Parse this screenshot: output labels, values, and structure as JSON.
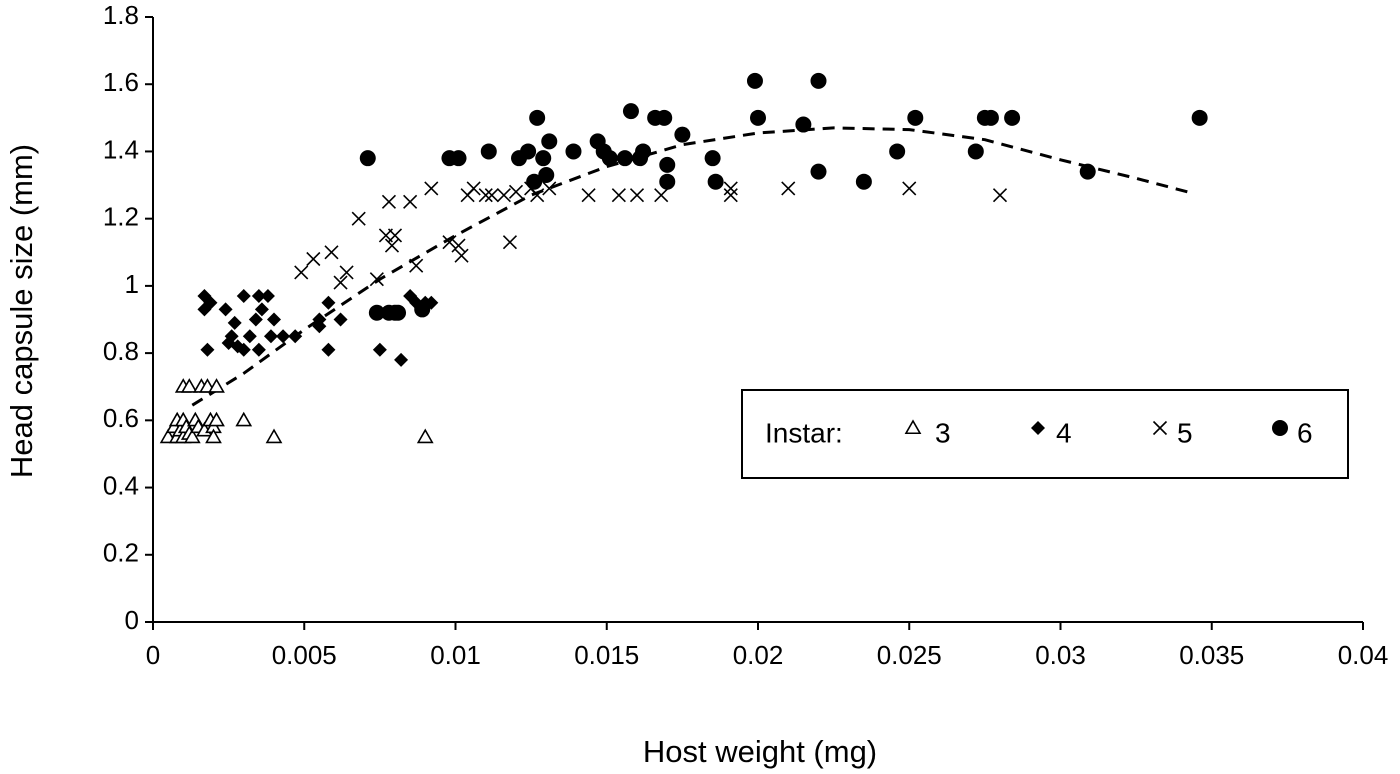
{
  "chart_data": {
    "type": "scatter",
    "xlabel": "Host weight (mg)",
    "ylabel": "Head capsule size (mm)",
    "xlim": [
      0,
      0.04
    ],
    "ylim": [
      0,
      1.8
    ],
    "x_ticks": [
      "0",
      "0.005",
      "0.01",
      "0.015",
      "0.02",
      "0.025",
      "0.03",
      "0.035",
      "0.04"
    ],
    "y_ticks": [
      "0",
      "0.2",
      "0.4",
      "0.6",
      "0.8",
      "1",
      "1.2",
      "1.4",
      "1.6",
      "1.8"
    ],
    "grid": false,
    "legend": {
      "title": "Instar:",
      "placement": "center-right",
      "entries": [
        {
          "label": "3",
          "marker": "triangle-open"
        },
        {
          "label": "4",
          "marker": "diamond-filled"
        },
        {
          "label": "5",
          "marker": "x"
        },
        {
          "label": "6",
          "marker": "circle-filled"
        }
      ]
    },
    "series": [
      {
        "name": "3",
        "marker": "triangle-open",
        "points": [
          [
            0.0005,
            0.55
          ],
          [
            0.0007,
            0.58
          ],
          [
            0.0008,
            0.6
          ],
          [
            0.0008,
            0.55
          ],
          [
            0.0009,
            0.57
          ],
          [
            0.001,
            0.7
          ],
          [
            0.001,
            0.6
          ],
          [
            0.001,
            0.55
          ],
          [
            0.0011,
            0.58
          ],
          [
            0.0012,
            0.7
          ],
          [
            0.0012,
            0.56
          ],
          [
            0.0013,
            0.55
          ],
          [
            0.0014,
            0.6
          ],
          [
            0.0015,
            0.58
          ],
          [
            0.0016,
            0.7
          ],
          [
            0.0017,
            0.57
          ],
          [
            0.0018,
            0.7
          ],
          [
            0.0019,
            0.6
          ],
          [
            0.002,
            0.58
          ],
          [
            0.002,
            0.55
          ],
          [
            0.0021,
            0.7
          ],
          [
            0.0021,
            0.6
          ],
          [
            0.003,
            0.6
          ],
          [
            0.004,
            0.55
          ],
          [
            0.009,
            0.55
          ]
        ]
      },
      {
        "name": "4",
        "marker": "diamond-filled",
        "points": [
          [
            0.0017,
            0.97
          ],
          [
            0.0017,
            0.93
          ],
          [
            0.0018,
            0.81
          ],
          [
            0.0019,
            0.95
          ],
          [
            0.0024,
            0.93
          ],
          [
            0.0025,
            0.83
          ],
          [
            0.0026,
            0.85
          ],
          [
            0.0027,
            0.89
          ],
          [
            0.0028,
            0.82
          ],
          [
            0.003,
            0.97
          ],
          [
            0.003,
            0.81
          ],
          [
            0.0032,
            0.85
          ],
          [
            0.0034,
            0.9
          ],
          [
            0.0035,
            0.81
          ],
          [
            0.0035,
            0.97
          ],
          [
            0.0036,
            0.93
          ],
          [
            0.0038,
            0.97
          ],
          [
            0.0039,
            0.85
          ],
          [
            0.004,
            0.9
          ],
          [
            0.0043,
            0.85
          ],
          [
            0.0047,
            0.85
          ],
          [
            0.0055,
            0.88
          ],
          [
            0.0055,
            0.9
          ],
          [
            0.0058,
            0.95
          ],
          [
            0.0058,
            0.81
          ],
          [
            0.0062,
            0.9
          ],
          [
            0.0075,
            0.81
          ],
          [
            0.0082,
            0.78
          ],
          [
            0.0085,
            0.97
          ],
          [
            0.0087,
            0.95
          ],
          [
            0.009,
            0.95
          ],
          [
            0.0092,
            0.95
          ]
        ]
      },
      {
        "name": "5",
        "marker": "x",
        "points": [
          [
            0.0049,
            1.04
          ],
          [
            0.0053,
            1.08
          ],
          [
            0.0059,
            1.1
          ],
          [
            0.0062,
            1.01
          ],
          [
            0.0064,
            1.04
          ],
          [
            0.0068,
            1.2
          ],
          [
            0.0074,
            1.02
          ],
          [
            0.0077,
            1.15
          ],
          [
            0.0078,
            1.25
          ],
          [
            0.0079,
            1.12
          ],
          [
            0.008,
            1.15
          ],
          [
            0.0085,
            1.25
          ],
          [
            0.0087,
            1.06
          ],
          [
            0.0092,
            1.29
          ],
          [
            0.0098,
            1.13
          ],
          [
            0.0101,
            1.12
          ],
          [
            0.0102,
            1.09
          ],
          [
            0.0104,
            1.27
          ],
          [
            0.0106,
            1.29
          ],
          [
            0.011,
            1.27
          ],
          [
            0.0112,
            1.27
          ],
          [
            0.0116,
            1.27
          ],
          [
            0.0118,
            1.13
          ],
          [
            0.012,
            1.28
          ],
          [
            0.0125,
            1.29
          ],
          [
            0.0127,
            1.27
          ],
          [
            0.0131,
            1.29
          ],
          [
            0.0144,
            1.27
          ],
          [
            0.0154,
            1.27
          ],
          [
            0.016,
            1.27
          ],
          [
            0.0168,
            1.27
          ],
          [
            0.0191,
            1.29
          ],
          [
            0.0191,
            1.27
          ],
          [
            0.021,
            1.29
          ],
          [
            0.025,
            1.29
          ],
          [
            0.028,
            1.27
          ]
        ]
      },
      {
        "name": "6",
        "marker": "circle-filled",
        "points": [
          [
            0.0071,
            1.38
          ],
          [
            0.0074,
            0.92
          ],
          [
            0.0078,
            0.92
          ],
          [
            0.008,
            0.92
          ],
          [
            0.0081,
            0.92
          ],
          [
            0.0089,
            0.93
          ],
          [
            0.0098,
            1.38
          ],
          [
            0.0101,
            1.38
          ],
          [
            0.0111,
            1.4
          ],
          [
            0.0121,
            1.38
          ],
          [
            0.0124,
            1.4
          ],
          [
            0.0126,
            1.31
          ],
          [
            0.0127,
            1.5
          ],
          [
            0.0129,
            1.38
          ],
          [
            0.013,
            1.33
          ],
          [
            0.0131,
            1.43
          ],
          [
            0.0139,
            1.4
          ],
          [
            0.0147,
            1.43
          ],
          [
            0.0149,
            1.4
          ],
          [
            0.0151,
            1.38
          ],
          [
            0.0156,
            1.38
          ],
          [
            0.0158,
            1.52
          ],
          [
            0.0161,
            1.38
          ],
          [
            0.0162,
            1.4
          ],
          [
            0.0166,
            1.5
          ],
          [
            0.0169,
            1.5
          ],
          [
            0.017,
            1.36
          ],
          [
            0.017,
            1.31
          ],
          [
            0.0175,
            1.45
          ],
          [
            0.0185,
            1.38
          ],
          [
            0.0186,
            1.31
          ],
          [
            0.0199,
            1.61
          ],
          [
            0.02,
            1.5
          ],
          [
            0.0215,
            1.48
          ],
          [
            0.022,
            1.61
          ],
          [
            0.022,
            1.34
          ],
          [
            0.0235,
            1.31
          ],
          [
            0.0246,
            1.4
          ],
          [
            0.0252,
            1.5
          ],
          [
            0.0272,
            1.4
          ],
          [
            0.0275,
            1.5
          ],
          [
            0.0277,
            1.5
          ],
          [
            0.0284,
            1.5
          ],
          [
            0.0309,
            1.34
          ],
          [
            0.0346,
            1.5
          ]
        ]
      }
    ],
    "trendline": {
      "style": "dashed",
      "type": "polynomial",
      "x_range": [
        0.0013,
        0.0344
      ],
      "points": [
        [
          0.0013,
          0.645
        ],
        [
          0.003,
          0.74
        ],
        [
          0.005,
          0.87
        ],
        [
          0.0075,
          1.02
        ],
        [
          0.01,
          1.15
        ],
        [
          0.0125,
          1.27
        ],
        [
          0.015,
          1.355
        ],
        [
          0.0175,
          1.42
        ],
        [
          0.02,
          1.455
        ],
        [
          0.0225,
          1.47
        ],
        [
          0.025,
          1.465
        ],
        [
          0.0275,
          1.435
        ],
        [
          0.03,
          1.375
        ],
        [
          0.0325,
          1.32
        ],
        [
          0.0344,
          1.275
        ]
      ]
    }
  }
}
